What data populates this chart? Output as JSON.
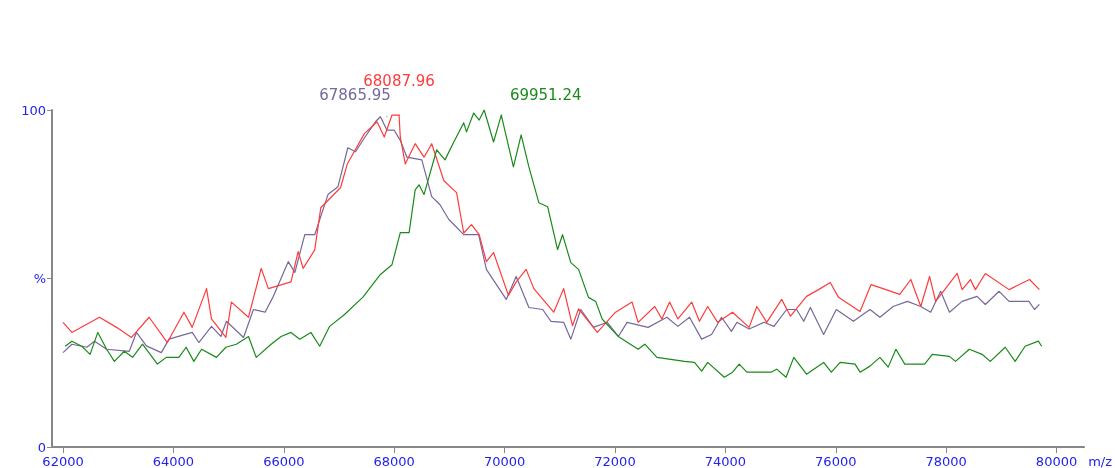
{
  "chart_data": {
    "type": "line",
    "xlabel": "m/z",
    "xlim": [
      61800,
      80500
    ],
    "xticks": [
      62000,
      64000,
      66000,
      68000,
      70000,
      72000,
      74000,
      76000,
      78000,
      80000
    ],
    "ylim": [
      0,
      100
    ],
    "yticks": [
      0,
      {
        "value": 50,
        "label": "%"
      },
      100
    ],
    "grid": false,
    "marker": "none",
    "line_style": "solid",
    "annotations": [
      {
        "text": "67865.95",
        "x": 67865.95,
        "y": 98
      },
      {
        "text": "68087.96",
        "x": 68087.96,
        "y": 98.5
      },
      {
        "text": "69951.24",
        "x": 69951.24,
        "y": 98.5
      }
    ],
    "series": [
      {
        "color": "#76689a",
        "x": [
          62000,
          62160,
          62430,
          62570,
          62790,
          63200,
          63330,
          63510,
          63780,
          63920,
          64340,
          64460,
          64690,
          64860,
          64960,
          65270,
          65450,
          65660,
          65810,
          66080,
          66200,
          66380,
          66560,
          66800,
          66980,
          67160,
          67300,
          67460,
          67660,
          67750,
          67870,
          68000,
          68110,
          68230,
          68500,
          68680,
          68830,
          68990,
          69260,
          69530,
          69670,
          70030,
          70210,
          70440,
          70690,
          70840,
          71070,
          71200,
          71380,
          71610,
          71860,
          72060,
          72220,
          72600,
          72940,
          73140,
          73350,
          73570,
          73750,
          73930,
          74110,
          74210,
          74430,
          74700,
          74880,
          75110,
          75290,
          75420,
          75540,
          75780,
          76010,
          76320,
          76620,
          76800,
          77040,
          77300,
          77540,
          77720,
          77900,
          78060,
          78290,
          78560,
          78710,
          78960,
          79140,
          79500,
          79600,
          79690
        ],
        "values": [
          28,
          30.5,
          29.6,
          31.4,
          29,
          28.4,
          34,
          30,
          28,
          32,
          34,
          31,
          35.8,
          32.8,
          37.3,
          32.5,
          40.8,
          40,
          44.7,
          55,
          51.8,
          63,
          63,
          74.9,
          77.2,
          88.8,
          87.6,
          91.7,
          96.5,
          98,
          94,
          94,
          91,
          86,
          85.2,
          74.3,
          71.9,
          67.5,
          63,
          63,
          52.7,
          43.8,
          50.6,
          41.4,
          40.8,
          37.3,
          37,
          32,
          40.8,
          35.5,
          37,
          32.8,
          37,
          35.5,
          38.5,
          35.8,
          38.5,
          32,
          33.4,
          38.5,
          34.3,
          37,
          35,
          37,
          35.8,
          40.8,
          40.8,
          37.3,
          41.4,
          33.4,
          40.8,
          37.3,
          40.8,
          38.5,
          41.7,
          43.2,
          41.7,
          40,
          46.2,
          40,
          43.2,
          44.7,
          42.3,
          46.2,
          43.2,
          43.2,
          40.8,
          42.3
        ]
      },
      {
        "color": "#ff3b3b",
        "x": [
          62000,
          62160,
          62660,
          62970,
          63240,
          63560,
          63890,
          64190,
          64340,
          64600,
          64690,
          64950,
          65050,
          65360,
          65590,
          65720,
          66130,
          66260,
          66350,
          66560,
          66670,
          67030,
          67150,
          67460,
          67690,
          67820,
          67960,
          68087.96,
          68110,
          68200,
          68380,
          68540,
          68680,
          68900,
          69130,
          69260,
          69400,
          69540,
          69670,
          69800,
          70070,
          70210,
          70390,
          70530,
          70890,
          71070,
          71230,
          71340,
          71680,
          72010,
          72310,
          72420,
          72720,
          72850,
          72990,
          73140,
          73390,
          73530,
          73680,
          73860,
          74130,
          74430,
          74570,
          74750,
          75020,
          75180,
          75470,
          75690,
          75900,
          76050,
          76440,
          76640,
          76910,
          77160,
          77360,
          77540,
          77700,
          77810,
          78200,
          78290,
          78440,
          78530,
          78710,
          79140,
          79510,
          79690
        ],
        "values": [
          37,
          34,
          38.5,
          35.5,
          32.5,
          38.5,
          31,
          40,
          35.5,
          47,
          38,
          32.5,
          43,
          38.5,
          53,
          47,
          49,
          58,
          53,
          58.5,
          71,
          77,
          84,
          93,
          96.5,
          92,
          98.5,
          98.5,
          92,
          84,
          90,
          86,
          90,
          79,
          75.5,
          63.5,
          66,
          63,
          55,
          57.7,
          45,
          49,
          52.7,
          47,
          40,
          47,
          36,
          41,
          34,
          40,
          43,
          37,
          41.7,
          38,
          43,
          38,
          43,
          37.3,
          41.7,
          37,
          40,
          35.5,
          41.7,
          37,
          43.8,
          38.8,
          44.7,
          46.7,
          48.8,
          44.4,
          40.2,
          48.2,
          46.7,
          45.3,
          49.7,
          41.7,
          50.6,
          43.2,
          51.5,
          46.7,
          49.7,
          46.7,
          51.5,
          46.7,
          49.7,
          46.7
        ]
      },
      {
        "color": "#1a8a1a",
        "x": [
          62040,
          62160,
          62340,
          62490,
          62630,
          62790,
          62930,
          63110,
          63260,
          63440,
          63710,
          63870,
          64100,
          64230,
          64370,
          64510,
          64780,
          64950,
          65140,
          65360,
          65500,
          65770,
          65950,
          66130,
          66290,
          66490,
          66650,
          66830,
          67100,
          67390,
          67430,
          67750,
          67960,
          68110,
          68270,
          68380,
          68450,
          68540,
          68770,
          68920,
          69080,
          69260,
          69310,
          69440,
          69540,
          69630,
          69800,
          69940,
          70160,
          70300,
          70440,
          70620,
          70780,
          70960,
          71050,
          71200,
          71340,
          71520,
          71650,
          71770,
          72060,
          72420,
          72540,
          72760,
          73260,
          73440,
          73570,
          73680,
          73980,
          74130,
          74250,
          74390,
          74830,
          74930,
          75100,
          75240,
          75470,
          75780,
          75920,
          76080,
          76350,
          76440,
          76620,
          76800,
          76950,
          77090,
          77250,
          77610,
          77750,
          78060,
          78170,
          78420,
          78650,
          78800,
          79070,
          79250,
          79430,
          79670,
          79730
        ],
        "values": [
          29.9,
          31.4,
          29.9,
          27.5,
          34,
          29,
          25.4,
          28.4,
          26.6,
          30.5,
          24.6,
          26.6,
          26.6,
          29.6,
          25.4,
          29,
          26.6,
          29.6,
          30.5,
          32.8,
          26.6,
          30.5,
          32.8,
          34,
          32,
          34,
          29.9,
          35.8,
          39.3,
          43.8,
          44.4,
          51.2,
          54.1,
          63.6,
          63.6,
          76.3,
          77.8,
          74.9,
          88.2,
          85.2,
          90.5,
          96.2,
          93.5,
          99.1,
          97,
          100,
          90.5,
          98.5,
          83.1,
          92.6,
          83.1,
          72.5,
          71.3,
          58.6,
          63,
          54.7,
          52.7,
          44.4,
          43.2,
          37.9,
          32.8,
          29,
          30.5,
          26.6,
          25.4,
          25.1,
          22.5,
          25.1,
          20.7,
          22.2,
          24.6,
          22.2,
          22.2,
          23.1,
          20.7,
          26.6,
          21.6,
          25.1,
          22.2,
          25.1,
          24.6,
          22.2,
          24,
          26.6,
          23.7,
          29,
          24.6,
          24.6,
          27.5,
          26.9,
          25.4,
          29,
          27.5,
          25.4,
          29.6,
          25.4,
          29.9,
          31.4,
          29.9
        ]
      }
    ]
  }
}
